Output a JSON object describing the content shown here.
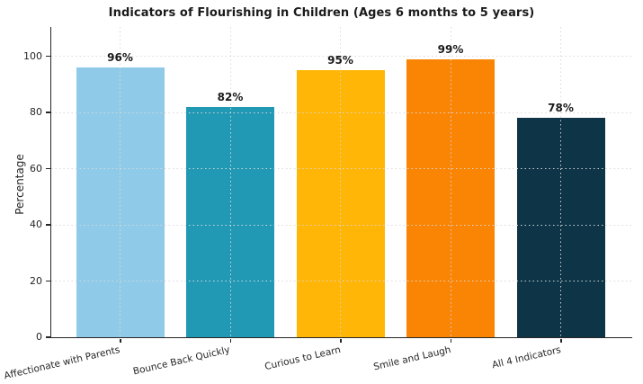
{
  "chart_data": {
    "type": "bar",
    "title": "Indicators of Flourishing in Children (Ages 6 months to 5 years)",
    "ylabel": "Percentage",
    "xlabel": "",
    "categories": [
      "Affectionate with Parents",
      "Bounce Back Quickly",
      "Curious to Learn",
      "Smile and Laugh",
      "All 4 Indicators"
    ],
    "values": [
      96,
      82,
      95,
      99,
      78
    ],
    "value_labels": [
      "96%",
      "82%",
      "95%",
      "99%",
      "78%"
    ],
    "bar_colors": [
      "#8FCBE9",
      "#2199B5",
      "#FFB607",
      "#FA8505",
      "#0D3547"
    ],
    "yticks": [
      0,
      20,
      40,
      60,
      80,
      100
    ],
    "ylim": [
      0,
      110
    ],
    "grid": "dotted, horizontal and vertical, drawn over bars",
    "legend": "none",
    "colors": {
      "background": "#ffffff",
      "spine": "#262626",
      "grid": "#d8d8d8",
      "title_text": "#1a1a1a",
      "tick_text": "#262626",
      "value_label_text": "#1a1a1a"
    }
  }
}
